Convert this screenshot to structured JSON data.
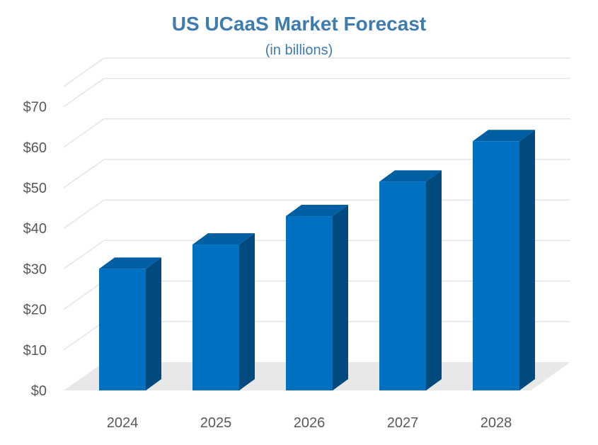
{
  "chart_data": {
    "type": "bar",
    "title": "US UCaaS Market Forecast",
    "subtitle": "(in billions)",
    "categories": [
      "2024",
      "2025",
      "2026",
      "2027",
      "2028"
    ],
    "values": [
      30,
      36,
      43,
      51.5,
      61.5
    ],
    "y_ticks": [
      "$0",
      "$10",
      "$20",
      "$30",
      "$40",
      "$50",
      "$60",
      "$70"
    ],
    "ylim": [
      0,
      75
    ],
    "xlabel": "",
    "ylabel": "",
    "grid": true,
    "legend": "none",
    "style": "3d-column"
  },
  "colors": {
    "title": "#3e7bb0",
    "bar_front": "#0070c0",
    "bar_top": "#005ea2",
    "bar_side": "#004a80",
    "floor": "#e8e8e8",
    "grid": "#e4e4e4",
    "tick_text": "#595959"
  }
}
